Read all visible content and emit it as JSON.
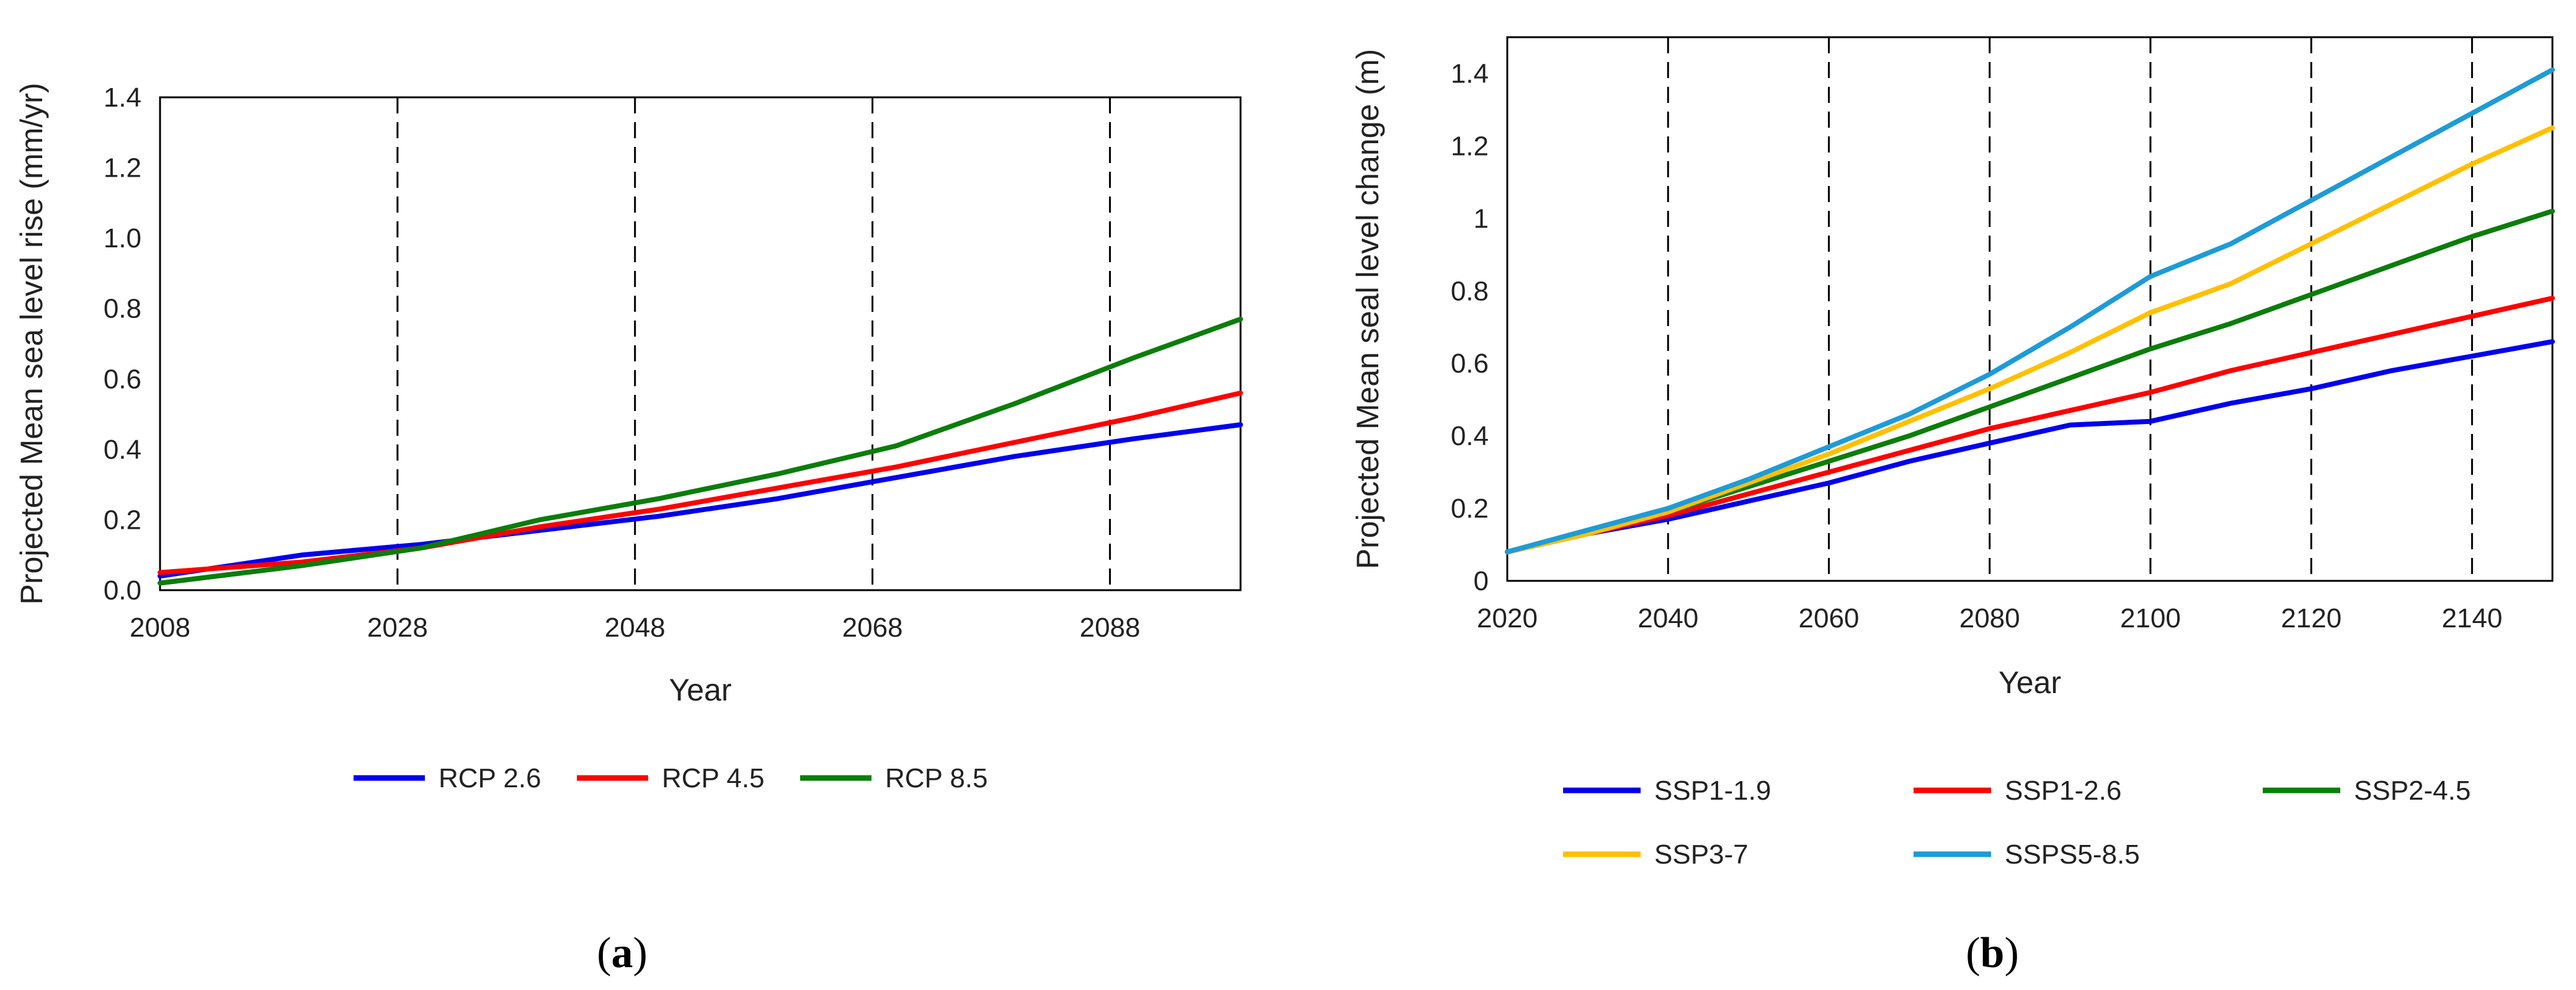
{
  "chart_data": [
    {
      "type": "line",
      "panel_label": "a",
      "xlabel": "Year",
      "ylabel": "Projected Mean sea level rise (mm/yr)",
      "xlim": [
        2008,
        2099
      ],
      "ylim": [
        0,
        1.4
      ],
      "x_ticks": [
        2008,
        2028,
        2048,
        2068,
        2088
      ],
      "y_ticks": [
        "0.0",
        "0.2",
        "0.4",
        "0.6",
        "0.8",
        "1.0",
        "1.2",
        "1.4"
      ],
      "vertical_dashed_lines": [
        2028,
        2048,
        2068,
        2088
      ],
      "x": [
        2008,
        2020,
        2030,
        2040,
        2050,
        2060,
        2070,
        2080,
        2090,
        2099
      ],
      "series": [
        {
          "name": "RCP 2.6",
          "color": "#0000ee",
          "values": [
            0.04,
            0.1,
            0.13,
            0.17,
            0.21,
            0.26,
            0.32,
            0.38,
            0.43,
            0.47
          ]
        },
        {
          "name": "RCP 4.5",
          "color": "#ff0000",
          "values": [
            0.05,
            0.08,
            0.12,
            0.18,
            0.23,
            0.29,
            0.35,
            0.42,
            0.49,
            0.56
          ]
        },
        {
          "name": "RCP 8.5",
          "color": "#0b7d0b",
          "values": [
            0.02,
            0.07,
            0.12,
            0.2,
            0.26,
            0.33,
            0.41,
            0.53,
            0.66,
            0.77
          ]
        }
      ],
      "legend": [
        "RCP 2.6",
        "RCP 4.5",
        "RCP 8.5"
      ]
    },
    {
      "type": "line",
      "panel_label": "b",
      "xlabel": "Year",
      "ylabel": "Projected Mean seal level change (m)",
      "xlim": [
        2020,
        2150
      ],
      "ylim": [
        0,
        1.5
      ],
      "x_ticks": [
        2020,
        2040,
        2060,
        2080,
        2100,
        2120,
        2140
      ],
      "y_ticks": [
        "0",
        "0.2",
        "0.4",
        "0.6",
        "0.8",
        "1",
        "1.2",
        "1.4"
      ],
      "vertical_dashed_lines": [
        2040,
        2060,
        2080,
        2100,
        2120,
        2140
      ],
      "x": [
        2020,
        2030,
        2040,
        2050,
        2060,
        2070,
        2080,
        2090,
        2100,
        2110,
        2120,
        2130,
        2140,
        2150
      ],
      "series": [
        {
          "name": "SSP1-1.9",
          "color": "#0000ee",
          "values": [
            0.08,
            0.13,
            0.17,
            0.22,
            0.27,
            0.33,
            0.38,
            0.43,
            0.44,
            0.49,
            0.53,
            0.58,
            0.62,
            0.66
          ]
        },
        {
          "name": "SSP1-2.6",
          "color": "#ff0000",
          "values": [
            0.08,
            0.13,
            0.18,
            0.24,
            0.3,
            0.36,
            0.42,
            0.47,
            0.52,
            0.58,
            0.63,
            0.68,
            0.73,
            0.78
          ]
        },
        {
          "name": "SSP2-4.5",
          "color": "#0b7d0b",
          "values": [
            0.08,
            0.13,
            0.19,
            0.26,
            0.33,
            0.4,
            0.48,
            0.56,
            0.64,
            0.71,
            0.79,
            0.87,
            0.95,
            1.02
          ]
        },
        {
          "name": "SSP3-7",
          "color": "#ffc000",
          "values": [
            0.08,
            0.13,
            0.19,
            0.27,
            0.35,
            0.44,
            0.53,
            0.63,
            0.74,
            0.82,
            0.93,
            1.04,
            1.15,
            1.25
          ]
        },
        {
          "name": "SSPS5-8.5",
          "color": "#1e9bd7",
          "values": [
            0.08,
            0.14,
            0.2,
            0.28,
            0.37,
            0.46,
            0.57,
            0.7,
            0.84,
            0.93,
            1.05,
            1.17,
            1.29,
            1.41
          ]
        }
      ],
      "legend": [
        "SSP1-1.9",
        "SSP1-2.6",
        "SSP2-4.5",
        "SSP3-7",
        "SSPS5-8.5"
      ]
    }
  ]
}
